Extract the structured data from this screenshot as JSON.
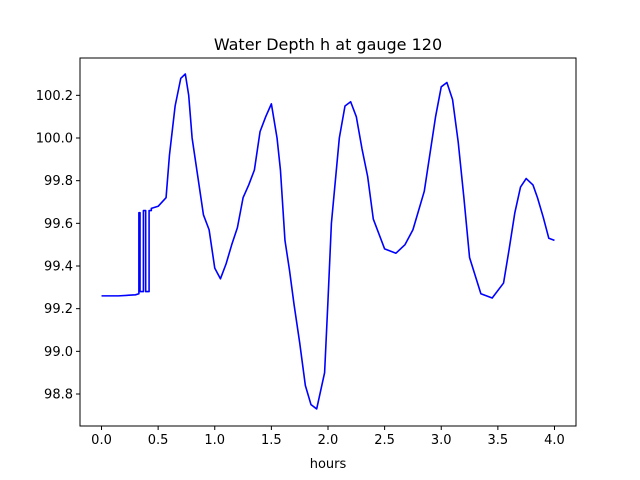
{
  "chart_data": {
    "type": "line",
    "title": "Water Depth h at gauge 120",
    "xlabel": "hours",
    "ylabel": "",
    "xlim": [
      -0.19,
      4.19
    ],
    "ylim": [
      98.65,
      100.375
    ],
    "x_ticks": [
      0.0,
      0.5,
      1.0,
      1.5,
      2.0,
      2.5,
      3.0,
      3.5,
      4.0
    ],
    "x_tick_labels": [
      "0.0",
      "0.5",
      "1.0",
      "1.5",
      "2.0",
      "2.5",
      "3.0",
      "3.5",
      "4.0"
    ],
    "y_ticks": [
      98.8,
      99.0,
      99.2,
      99.4,
      99.6,
      99.8,
      100.0,
      100.2
    ],
    "y_tick_labels": [
      "98.8",
      "99.0",
      "99.2",
      "99.4",
      "99.6",
      "99.8",
      "100.0",
      "100.2"
    ],
    "grid": false,
    "series": [
      {
        "color": "#0000ff",
        "x": [
          0.0,
          0.15,
          0.3,
          0.33,
          0.33,
          0.34,
          0.34,
          0.37,
          0.37,
          0.39,
          0.39,
          0.42,
          0.42,
          0.44,
          0.44,
          0.5,
          0.57,
          0.6,
          0.65,
          0.7,
          0.74,
          0.77,
          0.8,
          0.85,
          0.9,
          0.95,
          1.0,
          1.05,
          1.1,
          1.15,
          1.2,
          1.25,
          1.3,
          1.35,
          1.4,
          1.45,
          1.5,
          1.55,
          1.58,
          1.62,
          1.66,
          1.7,
          1.75,
          1.8,
          1.85,
          1.9,
          1.97,
          2.0,
          2.03,
          2.1,
          2.15,
          2.2,
          2.25,
          2.3,
          2.35,
          2.4,
          2.5,
          2.6,
          2.68,
          2.75,
          2.85,
          2.95,
          3.0,
          3.05,
          3.1,
          3.15,
          3.2,
          3.25,
          3.35,
          3.45,
          3.55,
          3.6,
          3.65,
          3.7,
          3.75,
          3.81,
          3.85,
          3.9,
          3.95,
          4.0
        ],
        "y": [
          99.26,
          99.26,
          99.265,
          99.27,
          99.65,
          99.65,
          99.28,
          99.28,
          99.66,
          99.66,
          99.28,
          99.28,
          99.66,
          99.66,
          99.67,
          99.68,
          99.72,
          99.92,
          100.15,
          100.28,
          100.3,
          100.2,
          100.0,
          99.82,
          99.64,
          99.57,
          99.39,
          99.34,
          99.41,
          99.5,
          99.58,
          99.72,
          99.78,
          99.85,
          100.03,
          100.1,
          100.16,
          100.0,
          99.85,
          99.52,
          99.38,
          99.22,
          99.04,
          98.84,
          98.75,
          98.73,
          98.9,
          99.24,
          99.6,
          100.0,
          100.15,
          100.17,
          100.1,
          99.95,
          99.82,
          99.62,
          99.48,
          99.46,
          99.5,
          99.57,
          99.75,
          100.1,
          100.24,
          100.26,
          100.18,
          99.98,
          99.72,
          99.44,
          99.27,
          99.25,
          99.32,
          99.48,
          99.65,
          99.77,
          99.81,
          99.78,
          99.72,
          99.63,
          99.53,
          99.52
        ]
      }
    ]
  }
}
